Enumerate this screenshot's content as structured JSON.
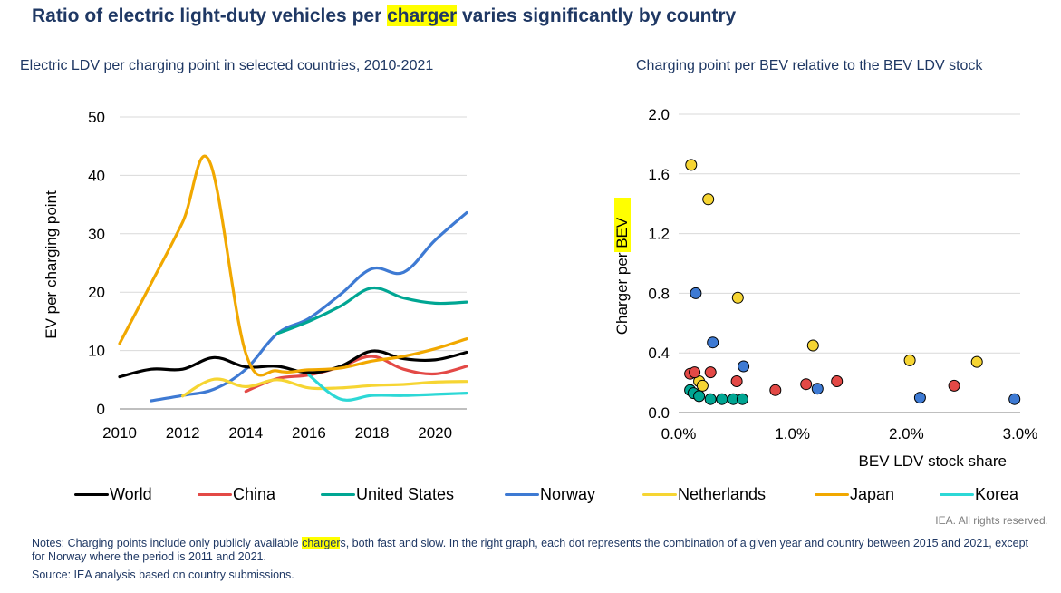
{
  "title": {
    "before": "Ratio of electric light-duty vehicles per ",
    "highlight": "charger",
    "after": " varies significantly by country"
  },
  "chart_data": [
    {
      "type": "line",
      "title": "Electric LDV per charging point in selected countries, 2010-2021",
      "xlabel": "",
      "ylabel": "EV per charging point",
      "xlim": [
        2010,
        2021
      ],
      "ylim": [
        0,
        50
      ],
      "xticks": [
        2010,
        2012,
        2014,
        2016,
        2018,
        2020
      ],
      "yticks": [
        0,
        10,
        20,
        30,
        40,
        50
      ],
      "grid": true,
      "series": [
        {
          "name": "World",
          "color": "#000000",
          "x": [
            2010,
            2011,
            2012,
            2013,
            2014,
            2015,
            2016,
            2017,
            2018,
            2019,
            2020,
            2021
          ],
          "y": [
            5.5,
            6.8,
            6.8,
            8.8,
            7.2,
            7.3,
            6.2,
            7.3,
            9.9,
            8.6,
            8.4,
            9.7
          ]
        },
        {
          "name": "China",
          "color": "#e34946",
          "x": [
            2014,
            2015,
            2016,
            2017,
            2018,
            2019,
            2020,
            2021
          ],
          "y": [
            3.0,
            5.2,
            5.8,
            7.2,
            9.0,
            6.8,
            6.0,
            7.3
          ]
        },
        {
          "name": "United States",
          "color": "#00a693",
          "x": [
            2015,
            2016,
            2017,
            2018,
            2019,
            2020,
            2021
          ],
          "y": [
            12.9,
            15.0,
            17.6,
            20.7,
            19.0,
            18.1,
            18.3
          ]
        },
        {
          "name": "Norway",
          "color": "#3e7ad3",
          "x": [
            2011,
            2012,
            2013,
            2014,
            2015,
            2016,
            2017,
            2018,
            2019,
            2020,
            2021
          ],
          "y": [
            1.4,
            2.3,
            3.4,
            6.8,
            12.9,
            15.5,
            19.6,
            24.0,
            23.4,
            28.9,
            33.6
          ]
        },
        {
          "name": "Netherlands",
          "color": "#f6d533",
          "x": [
            2012,
            2013,
            2014,
            2015,
            2016,
            2017,
            2018,
            2019,
            2020,
            2021
          ],
          "y": [
            2.2,
            5.1,
            3.8,
            5.0,
            3.6,
            3.6,
            4.0,
            4.2,
            4.6,
            4.7
          ]
        },
        {
          "name": "Japan",
          "color": "#f1a800",
          "x": [
            2010,
            2011,
            2012,
            2012.85,
            2014,
            2015,
            2016,
            2017,
            2018,
            2019,
            2020,
            2021
          ],
          "y": [
            11.2,
            21.5,
            32.0,
            42.4,
            9.5,
            6.5,
            6.7,
            7.0,
            8.2,
            9.0,
            10.3,
            12.0
          ]
        },
        {
          "name": "Korea",
          "color": "#2dd8d6",
          "x": [
            2016,
            2017,
            2018,
            2019,
            2020,
            2021
          ],
          "y": [
            5.8,
            1.7,
            2.3,
            2.3,
            2.5,
            2.7
          ]
        }
      ]
    },
    {
      "type": "scatter",
      "title": "Charging point per BEV relative to the BEV LDV stock",
      "xlabel": "BEV LDV stock share",
      "ylabel": {
        "highlight": "Charger",
        "rest": " per BEV"
      },
      "xlim": [
        0,
        0.03
      ],
      "ylim": [
        0,
        2.0
      ],
      "xticks": [
        0,
        0.01,
        0.02,
        0.03
      ],
      "xtick_labels": [
        "0.0%",
        "1.0%",
        "2.0%",
        "3.0%"
      ],
      "yticks": [
        0,
        0.4,
        0.8,
        1.2,
        1.6,
        2.0
      ],
      "ytick_labels": [
        "0.0",
        "0.4",
        "0.8",
        "1.2",
        "1.6",
        "2.0"
      ],
      "grid": true,
      "series": [
        {
          "name": "Netherlands",
          "color": "#f6d533",
          "x": [
            0.0011,
            0.0026,
            0.0052,
            0.0118,
            0.0203,
            0.0262,
            0.0018,
            0.0021
          ],
          "y": [
            1.66,
            1.43,
            0.77,
            0.45,
            0.35,
            0.34,
            0.21,
            0.18
          ]
        },
        {
          "name": "China",
          "color": "#e34946",
          "x": [
            0.001,
            0.0014,
            0.0028,
            0.0051,
            0.0085,
            0.0112,
            0.0139,
            0.0242
          ],
          "y": [
            0.26,
            0.27,
            0.27,
            0.21,
            0.15,
            0.19,
            0.21,
            0.18
          ]
        },
        {
          "name": "Norway",
          "color": "#3e7ad3",
          "x": [
            0.0015,
            0.003,
            0.0057,
            0.0122,
            0.0212,
            0.0295
          ],
          "y": [
            0.8,
            0.47,
            0.31,
            0.16,
            0.1,
            0.09
          ]
        },
        {
          "name": "United States",
          "color": "#00a693",
          "x": [
            0.001,
            0.0013,
            0.0018,
            0.0028,
            0.0038,
            0.0048,
            0.0056
          ],
          "y": [
            0.15,
            0.13,
            0.11,
            0.09,
            0.09,
            0.09,
            0.09
          ]
        }
      ]
    }
  ],
  "legend": [
    {
      "name": "World",
      "color": "#000000"
    },
    {
      "name": "China",
      "color": "#e34946"
    },
    {
      "name": "United States",
      "color": "#00a693"
    },
    {
      "name": "Norway",
      "color": "#3e7ad3"
    },
    {
      "name": "Netherlands",
      "color": "#f6d533"
    },
    {
      "name": "Japan",
      "color": "#f1a800"
    },
    {
      "name": "Korea",
      "color": "#2dd8d6"
    }
  ],
  "rights": "IEA. All rights reserved.",
  "notes": {
    "before": "Notes: Charging points include only publicly available ",
    "highlight": "charger",
    "after": "s, both fast and slow. In the right graph, each dot represents the combination of a given year and country between 2015 and 2021, except for Norway where the period is 2011 and 2021."
  },
  "source": "Source: IEA analysis based on country submissions."
}
